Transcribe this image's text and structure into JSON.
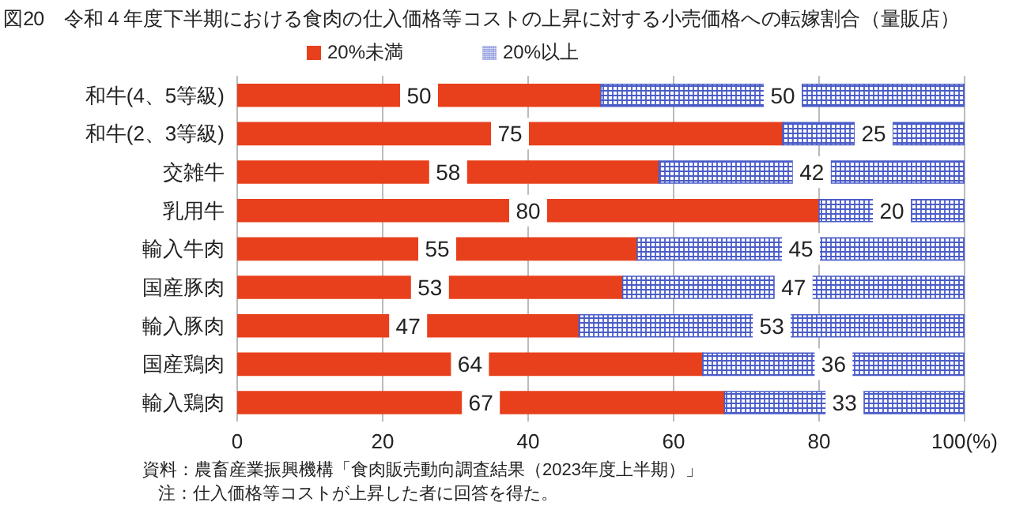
{
  "chart_data": {
    "type": "bar",
    "orientation": "horizontal",
    "stacked": true,
    "title": "図20　令和４年度下半期における食肉の仕入価格等コストの上昇に対する小売価格への転嫁割合（量販店）",
    "categories": [
      "和牛(4、5等級)",
      "和牛(2、3等級)",
      "交雑牛",
      "乳用牛",
      "輸入牛肉",
      "国産豚肉",
      "輸入豚肉",
      "国産鶏肉",
      "輸入鶏肉"
    ],
    "series": [
      {
        "name": "20%未満",
        "color": "#e8401c",
        "values": [
          50,
          75,
          58,
          80,
          55,
          53,
          47,
          64,
          67
        ]
      },
      {
        "name": "20%以上",
        "color": "#4a5cc8",
        "values": [
          50,
          25,
          42,
          20,
          45,
          47,
          53,
          36,
          33
        ]
      }
    ],
    "xlim": [
      0,
      100
    ],
    "xticks": [
      0,
      20,
      40,
      60,
      80,
      {
        "value": 100,
        "label": "100(%)"
      }
    ],
    "grid": "x",
    "legend": "top",
    "data_labels": true,
    "annotations": [
      "資料：農畜産業振興機構「食肉販売動向調査結果（2023年度上半期）」",
      "注：仕入価格等コストが上昇した者に回答を得た。"
    ]
  }
}
